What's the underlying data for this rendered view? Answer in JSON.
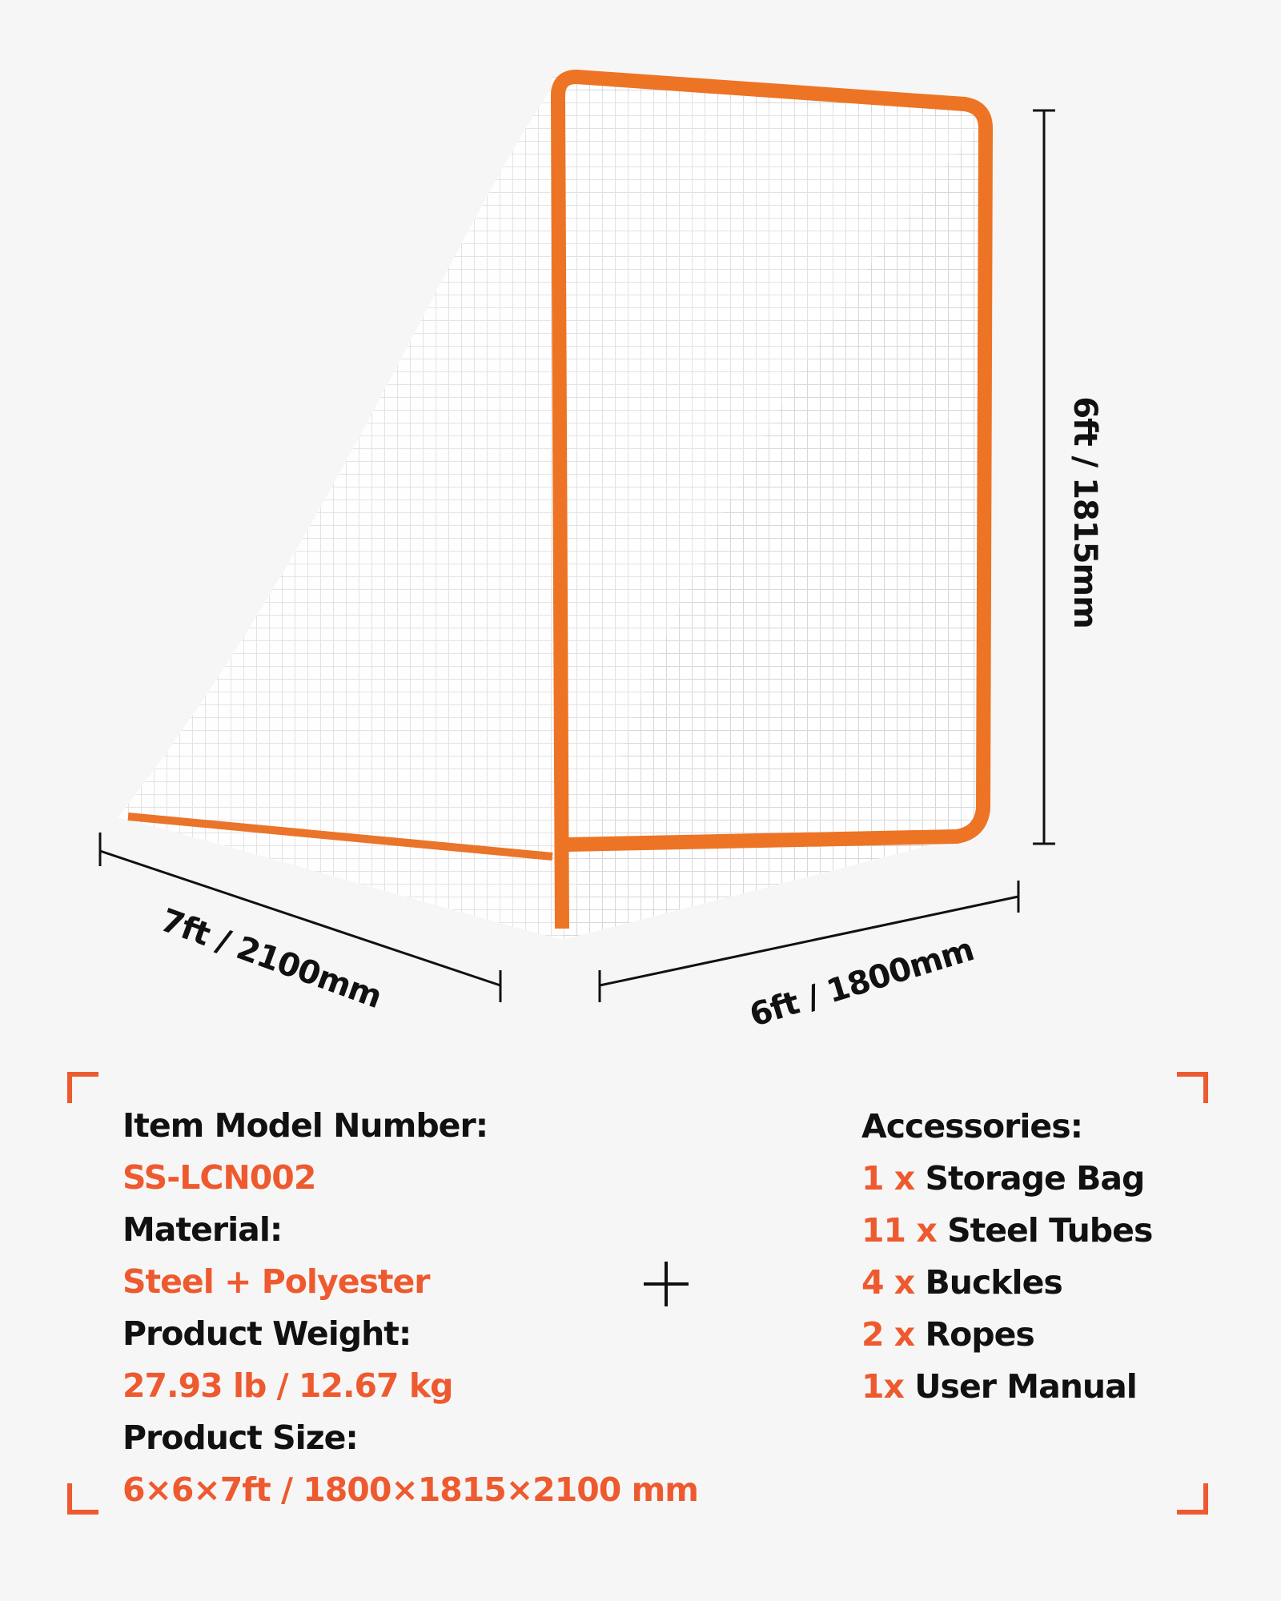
{
  "dimensions": {
    "height": "6ft / 1815mm",
    "depth": "7ft / 2100mm",
    "width": "6ft / 1800mm"
  },
  "specs": [
    {
      "label": "Item Model Number:",
      "value": "SS-LCN002"
    },
    {
      "label": "Material:",
      "value": "Steel + Polyester"
    },
    {
      "label": "Product Weight:",
      "value": "27.93 lb / 12.67 kg"
    },
    {
      "label": "Product Size:",
      "value": "6×6×7ft / 1800×1815×2100 mm"
    }
  ],
  "accessories": {
    "title": "Accessories:",
    "items": [
      {
        "qty": "1 x",
        "name": "Storage Bag"
      },
      {
        "qty": "11 x",
        "name": "Steel Tubes"
      },
      {
        "qty": "4 x",
        "name": "Buckles"
      },
      {
        "qty": "2 x",
        "name": "Ropes"
      },
      {
        "qty": "1x",
        "name": "User Manual"
      }
    ]
  }
}
